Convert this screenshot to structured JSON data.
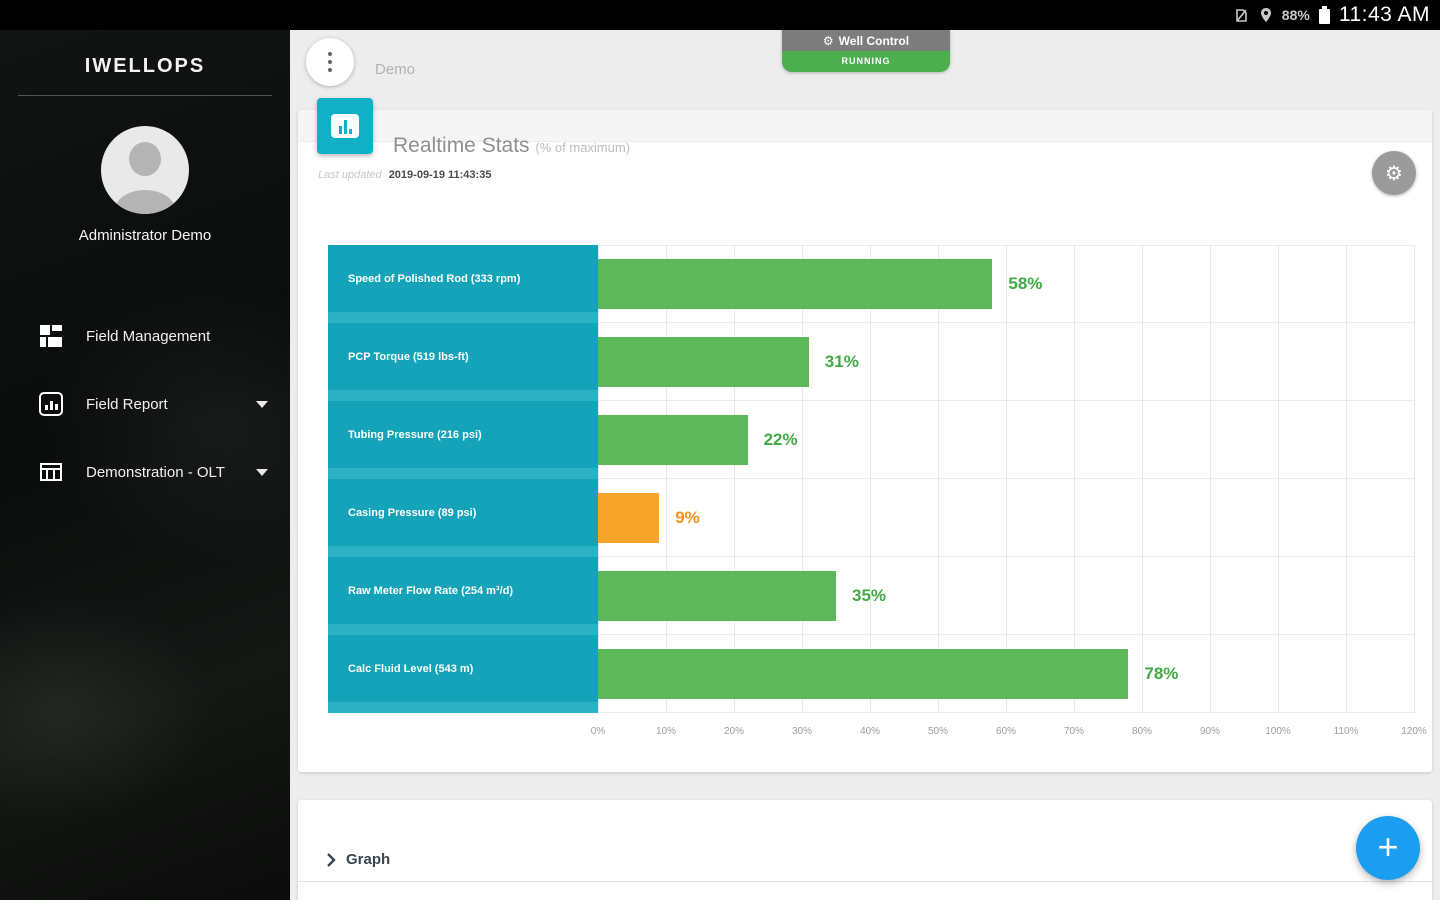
{
  "status_bar": {
    "battery_percent": "88%",
    "time": "11:43 AM",
    "icons": [
      "no-sim-icon",
      "location-icon",
      "battery-icon"
    ]
  },
  "sidebar": {
    "app_title": "IWELLOPS",
    "user_name": "Administrator Demo",
    "items": [
      {
        "label": "Field Management",
        "icon": "grid-icon",
        "caret": false
      },
      {
        "label": "Field Report",
        "icon": "report-icon",
        "caret": true
      },
      {
        "label": "Demonstration - OLT",
        "icon": "building-icon",
        "caret": true
      }
    ]
  },
  "header": {
    "page_title": "Demo",
    "well_control": {
      "label": "Well Control",
      "status": "RUNNING",
      "gear_glyph": "⚙"
    }
  },
  "stats_card": {
    "title": "Realtime Stats",
    "subtitle": "(% of maximum)",
    "last_updated_label": "Last updated",
    "last_updated_value": "2019-09-19 11:43:35"
  },
  "chart_data": {
    "type": "bar",
    "orientation": "horizontal",
    "title": "Realtime Stats (% of maximum)",
    "categories": [
      "Speed of Polished Rod (333 rpm)",
      "PCP Torque (519 lbs-ft)",
      "Tubing Pressure (216 psi)",
      "Casing Pressure (89 psi)",
      "Raw Meter Flow Rate (254 m³/d)",
      "Calc Fluid Level (543 m)"
    ],
    "values": [
      58,
      31,
      22,
      9,
      35,
      78
    ],
    "value_labels": [
      "58%",
      "31%",
      "22%",
      "9%",
      "35%",
      "78%"
    ],
    "bar_colors": [
      "#5db85c",
      "#5db85c",
      "#5db85c",
      "#f6a42a",
      "#5db85c",
      "#5db85c"
    ],
    "value_colors": [
      "#43a847",
      "#43a847",
      "#43a847",
      "#f6921e",
      "#43a847",
      "#43a847"
    ],
    "xlim": [
      0,
      120
    ],
    "x_ticks": [
      "0%",
      "10%",
      "20%",
      "30%",
      "40%",
      "50%",
      "60%",
      "70%",
      "80%",
      "90%",
      "100%",
      "110%",
      "120%"
    ],
    "grid": true,
    "legend": false
  },
  "bottom_card": {
    "graph_label": "Graph"
  },
  "fab": {
    "plus_glyph": "+"
  },
  "colors": {
    "teal_label": "#14a3b8",
    "teal_tile": "#12b0c6",
    "bar_green": "#5db85c",
    "bar_orange": "#f6a42a",
    "running_green": "#4cae4f",
    "fab_blue": "#1b9df0"
  }
}
